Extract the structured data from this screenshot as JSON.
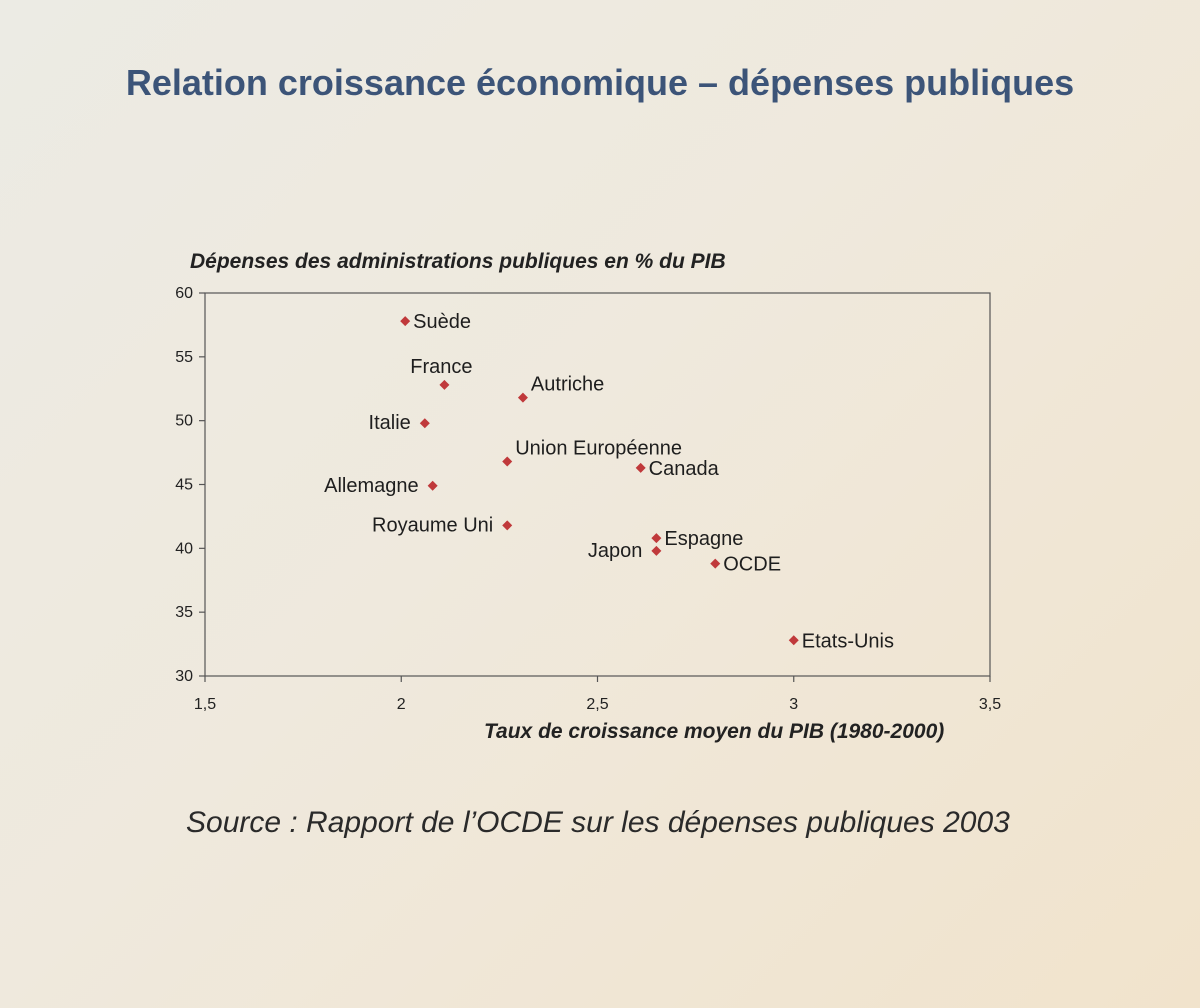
{
  "page": {
    "title": "Relation croissance économique – dépenses publiques",
    "source": "Source : Rapport de l’OCDE sur les dépenses publiques 2003"
  },
  "colors": {
    "title": "#3c5478",
    "marker": "#c0393b",
    "axis": "#555555"
  },
  "chart_data": {
    "type": "scatter",
    "title": "",
    "xlabel": "Taux de croissance moyen du PIB (1980-2000)",
    "ylabel": "Dépenses des administrations publiques en % du PIB",
    "xlim": [
      1.5,
      3.5
    ],
    "ylim": [
      30,
      60
    ],
    "xticks": [
      "1,5",
      "2",
      "2,5",
      "3",
      "3,5"
    ],
    "yticks": [
      "30",
      "35",
      "40",
      "45",
      "50",
      "55",
      "60"
    ],
    "grid": false,
    "marker": "diamond",
    "points": [
      {
        "label": "Suède",
        "x": 2.01,
        "y": 57.8,
        "label_pos": "right"
      },
      {
        "label": "France",
        "x": 2.11,
        "y": 52.8,
        "label_pos": "above"
      },
      {
        "label": "Autriche",
        "x": 2.31,
        "y": 51.8,
        "label_pos": "above-right"
      },
      {
        "label": "Italie",
        "x": 2.06,
        "y": 49.8,
        "label_pos": "left"
      },
      {
        "label": "Union Européenne",
        "x": 2.27,
        "y": 46.8,
        "label_pos": "above-right"
      },
      {
        "label": "Canada",
        "x": 2.61,
        "y": 46.3,
        "label_pos": "right"
      },
      {
        "label": "Allemagne",
        "x": 2.08,
        "y": 44.9,
        "label_pos": "left"
      },
      {
        "label": "Royaume Uni",
        "x": 2.27,
        "y": 41.8,
        "label_pos": "left"
      },
      {
        "label": "Espagne",
        "x": 2.65,
        "y": 40.8,
        "label_pos": "right"
      },
      {
        "label": "Japon",
        "x": 2.65,
        "y": 39.8,
        "label_pos": "left"
      },
      {
        "label": "OCDE",
        "x": 2.8,
        "y": 38.8,
        "label_pos": "right"
      },
      {
        "label": "Etats-Unis",
        "x": 3.0,
        "y": 32.8,
        "label_pos": "right"
      }
    ]
  }
}
